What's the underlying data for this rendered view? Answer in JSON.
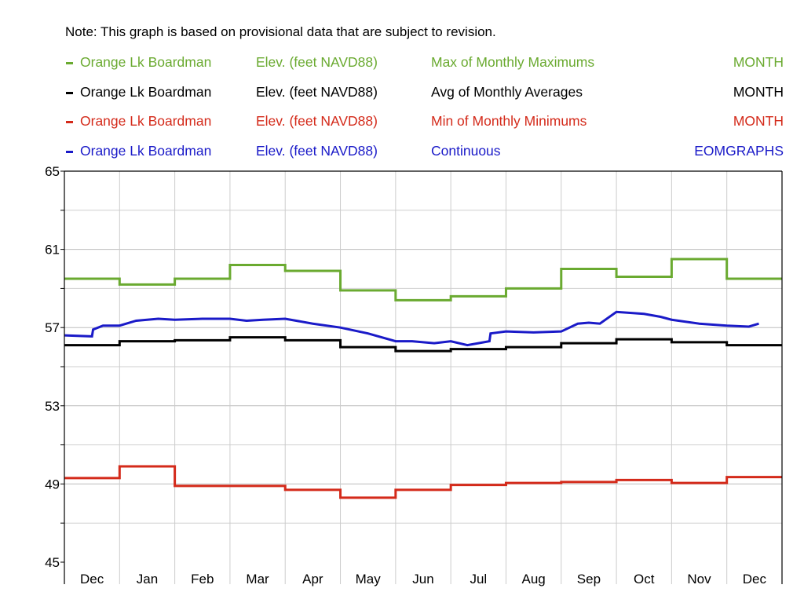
{
  "note": "Note: This graph is based on provisional data that are subject to revision.",
  "legend": [
    {
      "site": "Orange Lk Boardman",
      "parameter": "Elev. (feet NAVD88)",
      "statistic": "Max of Monthly Maximums",
      "period": "MONTH",
      "color": "#6aaa30"
    },
    {
      "site": "Orange Lk Boardman",
      "parameter": "Elev. (feet NAVD88)",
      "statistic": "Avg of Monthly Averages",
      "period": "MONTH",
      "color": "#000000"
    },
    {
      "site": "Orange Lk Boardman",
      "parameter": "Elev. (feet NAVD88)",
      "statistic": "Min of Monthly Minimums",
      "period": "MONTH",
      "color": "#d42a1a"
    },
    {
      "site": "Orange Lk Boardman",
      "parameter": "Elev. (feet NAVD88)",
      "statistic": "Continuous",
      "period": "EOMGRAPHS",
      "color": "#1a1ac8"
    }
  ],
  "chart_data": {
    "type": "line",
    "categories": [
      "Dec",
      "Jan",
      "Feb",
      "Mar",
      "Apr",
      "May",
      "Jun",
      "Jul",
      "Aug",
      "Sep",
      "Oct",
      "Nov",
      "Dec"
    ],
    "y_ticks": [
      45,
      49,
      53,
      57,
      61,
      65
    ],
    "ylim": [
      45,
      65
    ],
    "grid": true,
    "legend_position": "top",
    "series": [
      {
        "name": "Max of Monthly Maximums",
        "step": true,
        "color": "#6aaa30",
        "values": [
          59.5,
          59.2,
          59.5,
          60.2,
          59.9,
          58.9,
          58.4,
          58.6,
          59.0,
          60.0,
          59.6,
          60.5,
          59.5
        ]
      },
      {
        "name": "Avg of Monthly Averages",
        "step": true,
        "color": "#000000",
        "values": [
          56.1,
          56.3,
          56.35,
          56.5,
          56.35,
          56.0,
          55.8,
          55.9,
          56.0,
          56.2,
          56.4,
          56.25,
          56.1
        ]
      },
      {
        "name": "Min of Monthly Minimums",
        "step": true,
        "color": "#d42a1a",
        "values": [
          49.3,
          49.9,
          48.9,
          48.9,
          48.7,
          48.3,
          48.7,
          48.95,
          49.05,
          49.1,
          49.2,
          49.05,
          49.35
        ]
      },
      {
        "name": "Continuous",
        "step": false,
        "color": "#1a1ac8",
        "x": [
          0,
          0.5,
          0.52,
          0.7,
          1.0,
          1.3,
          1.7,
          2.0,
          2.5,
          3.0,
          3.3,
          3.6,
          4.0,
          4.5,
          5.0,
          5.5,
          6.0,
          6.3,
          6.7,
          7.0,
          7.3,
          7.5,
          7.7,
          7.72,
          8.0,
          8.5,
          9.0,
          9.3,
          9.5,
          9.7,
          10.0,
          10.5,
          10.8,
          11.0,
          11.5,
          12.0,
          12.4,
          12.58
        ],
        "values": [
          56.6,
          56.55,
          56.9,
          57.1,
          57.1,
          57.35,
          57.45,
          57.4,
          57.45,
          57.45,
          57.35,
          57.4,
          57.45,
          57.2,
          57.0,
          56.7,
          56.3,
          56.3,
          56.2,
          56.3,
          56.1,
          56.2,
          56.3,
          56.7,
          56.8,
          56.75,
          56.8,
          57.2,
          57.25,
          57.2,
          57.8,
          57.7,
          57.55,
          57.4,
          57.2,
          57.1,
          57.05,
          57.2
        ]
      }
    ]
  }
}
